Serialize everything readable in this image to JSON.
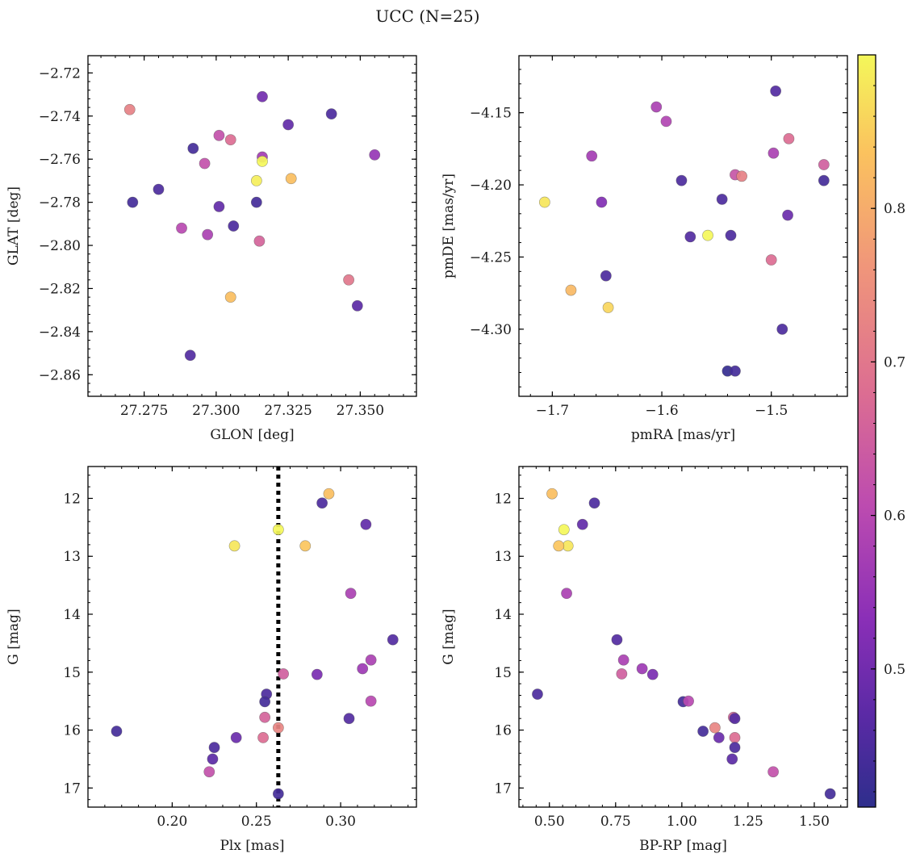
{
  "figure_title": "UCC (N=25)",
  "colorbar": {
    "colormap": "plasma",
    "range": [
      0.41,
      0.9
    ],
    "ticks": [
      0.5,
      0.6,
      0.7,
      0.8
    ],
    "tick_labels": [
      "0.5",
      "0.6",
      "0.7",
      "0.8"
    ]
  },
  "chart_data": [
    {
      "type": "scatter",
      "id": "glon-glat",
      "xlabel": "GLON [deg]",
      "ylabel": "GLAT [deg]",
      "xlim": [
        27.2555,
        27.3695
      ],
      "ylim": [
        -2.87,
        -2.712
      ],
      "y_inverted": false,
      "xticks": [
        27.275,
        27.3,
        27.325,
        27.35
      ],
      "xtick_labels": [
        "27.275",
        "27.300",
        "27.325",
        "27.350"
      ],
      "yticks": [
        -2.72,
        -2.74,
        -2.76,
        -2.78,
        -2.8,
        -2.82,
        -2.84,
        -2.86
      ],
      "ytick_labels": [
        "−2.72",
        "−2.74",
        "−2.76",
        "−2.78",
        "−2.80",
        "−2.82",
        "−2.84",
        "−2.86"
      ],
      "points": [
        {
          "x": 27.27,
          "y": -2.737,
          "c": 0.72
        },
        {
          "x": 27.316,
          "y": -2.731,
          "c": 0.5
        },
        {
          "x": 27.34,
          "y": -2.739,
          "c": 0.45
        },
        {
          "x": 27.325,
          "y": -2.744,
          "c": 0.48
        },
        {
          "x": 27.301,
          "y": -2.749,
          "c": 0.62
        },
        {
          "x": 27.305,
          "y": -2.751,
          "c": 0.68
        },
        {
          "x": 27.292,
          "y": -2.755,
          "c": 0.44
        },
        {
          "x": 27.316,
          "y": -2.759,
          "c": 0.57
        },
        {
          "x": 27.355,
          "y": -2.758,
          "c": 0.55
        },
        {
          "x": 27.316,
          "y": -2.761,
          "c": 0.9
        },
        {
          "x": 27.296,
          "y": -2.762,
          "c": 0.62
        },
        {
          "x": 27.326,
          "y": -2.769,
          "c": 0.83
        },
        {
          "x": 27.314,
          "y": -2.77,
          "c": 0.89
        },
        {
          "x": 27.28,
          "y": -2.774,
          "c": 0.45
        },
        {
          "x": 27.271,
          "y": -2.78,
          "c": 0.44
        },
        {
          "x": 27.314,
          "y": -2.78,
          "c": 0.44
        },
        {
          "x": 27.301,
          "y": -2.782,
          "c": 0.48
        },
        {
          "x": 27.306,
          "y": -2.791,
          "c": 0.45
        },
        {
          "x": 27.288,
          "y": -2.792,
          "c": 0.6
        },
        {
          "x": 27.297,
          "y": -2.795,
          "c": 0.58
        },
        {
          "x": 27.315,
          "y": -2.798,
          "c": 0.66
        },
        {
          "x": 27.305,
          "y": -2.824,
          "c": 0.83
        },
        {
          "x": 27.346,
          "y": -2.816,
          "c": 0.7
        },
        {
          "x": 27.349,
          "y": -2.828,
          "c": 0.47
        },
        {
          "x": 27.291,
          "y": -2.851,
          "c": 0.46
        }
      ]
    },
    {
      "type": "scatter",
      "id": "pmra-pmde",
      "xlabel": "pmRA [mas/yr]",
      "ylabel": "pmDE [mas/yr]",
      "xlim": [
        -1.7305,
        -1.4305
      ],
      "ylim": [
        -4.3465,
        -4.1105
      ],
      "y_inverted": false,
      "xticks": [
        -1.7,
        -1.6,
        -1.5
      ],
      "xtick_labels": [
        "−1.7",
        "−1.6",
        "−1.5"
      ],
      "yticks": [
        -4.15,
        -4.2,
        -4.25,
        -4.3
      ],
      "ytick_labels": [
        "−4.15",
        "−4.20",
        "−4.25",
        "−4.30"
      ],
      "points": [
        {
          "x": -1.496,
          "y": -4.135,
          "c": 0.46
        },
        {
          "x": -1.605,
          "y": -4.146,
          "c": 0.58
        },
        {
          "x": -1.596,
          "y": -4.156,
          "c": 0.59
        },
        {
          "x": -1.484,
          "y": -4.168,
          "c": 0.68
        },
        {
          "x": -1.498,
          "y": -4.178,
          "c": 0.58
        },
        {
          "x": -1.664,
          "y": -4.18,
          "c": 0.57
        },
        {
          "x": -1.452,
          "y": -4.186,
          "c": 0.65
        },
        {
          "x": -1.533,
          "y": -4.193,
          "c": 0.63
        },
        {
          "x": -1.527,
          "y": -4.194,
          "c": 0.72
        },
        {
          "x": -1.582,
          "y": -4.197,
          "c": 0.45
        },
        {
          "x": -1.452,
          "y": -4.197,
          "c": 0.44
        },
        {
          "x": -1.707,
          "y": -4.212,
          "c": 0.88
        },
        {
          "x": -1.655,
          "y": -4.212,
          "c": 0.52
        },
        {
          "x": -1.545,
          "y": -4.21,
          "c": 0.45
        },
        {
          "x": -1.485,
          "y": -4.221,
          "c": 0.49
        },
        {
          "x": -1.574,
          "y": -4.236,
          "c": 0.46
        },
        {
          "x": -1.537,
          "y": -4.235,
          "c": 0.45
        },
        {
          "x": -1.558,
          "y": -4.235,
          "c": 0.9
        },
        {
          "x": -1.5,
          "y": -4.252,
          "c": 0.68
        },
        {
          "x": -1.651,
          "y": -4.263,
          "c": 0.45
        },
        {
          "x": -1.683,
          "y": -4.273,
          "c": 0.82
        },
        {
          "x": -1.649,
          "y": -4.285,
          "c": 0.86
        },
        {
          "x": -1.49,
          "y": -4.3,
          "c": 0.45
        },
        {
          "x": -1.54,
          "y": -4.329,
          "c": 0.42
        },
        {
          "x": -1.533,
          "y": -4.329,
          "c": 0.44
        }
      ]
    },
    {
      "type": "scatter",
      "id": "plx-g",
      "xlabel": "Plx [mas]",
      "ylabel": "G [mag]",
      "xlim": [
        0.15,
        0.345
      ],
      "ylim": [
        17.33,
        11.45
      ],
      "y_inverted": true,
      "vline": {
        "x": 0.263,
        "style": "dotted"
      },
      "xticks": [
        0.2,
        0.25,
        0.3
      ],
      "xtick_labels": [
        "0.20",
        "0.25",
        "0.30"
      ],
      "yticks": [
        12,
        13,
        14,
        15,
        16,
        17
      ],
      "ytick_labels": [
        "12",
        "13",
        "14",
        "15",
        "16",
        "17"
      ],
      "points": [
        {
          "x": 0.293,
          "y": 11.92,
          "c": 0.83
        },
        {
          "x": 0.289,
          "y": 12.08,
          "c": 0.45
        },
        {
          "x": 0.315,
          "y": 12.45,
          "c": 0.48
        },
        {
          "x": 0.263,
          "y": 12.54,
          "c": 0.9
        },
        {
          "x": 0.237,
          "y": 12.82,
          "c": 0.88
        },
        {
          "x": 0.279,
          "y": 12.82,
          "c": 0.84
        },
        {
          "x": 0.306,
          "y": 13.64,
          "c": 0.58
        },
        {
          "x": 0.331,
          "y": 14.44,
          "c": 0.46
        },
        {
          "x": 0.318,
          "y": 14.79,
          "c": 0.58
        },
        {
          "x": 0.313,
          "y": 14.94,
          "c": 0.56
        },
        {
          "x": 0.266,
          "y": 15.03,
          "c": 0.65
        },
        {
          "x": 0.286,
          "y": 15.04,
          "c": 0.51
        },
        {
          "x": 0.256,
          "y": 15.38,
          "c": 0.45
        },
        {
          "x": 0.255,
          "y": 15.51,
          "c": 0.44
        },
        {
          "x": 0.318,
          "y": 15.5,
          "c": 0.6
        },
        {
          "x": 0.255,
          "y": 15.78,
          "c": 0.66
        },
        {
          "x": 0.305,
          "y": 15.8,
          "c": 0.46
        },
        {
          "x": 0.263,
          "y": 15.96,
          "c": 0.73
        },
        {
          "x": 0.167,
          "y": 16.02,
          "c": 0.44
        },
        {
          "x": 0.238,
          "y": 16.13,
          "c": 0.49
        },
        {
          "x": 0.254,
          "y": 16.13,
          "c": 0.68
        },
        {
          "x": 0.225,
          "y": 16.3,
          "c": 0.45
        },
        {
          "x": 0.224,
          "y": 16.5,
          "c": 0.47
        },
        {
          "x": 0.222,
          "y": 16.72,
          "c": 0.62
        },
        {
          "x": 0.263,
          "y": 17.1,
          "c": 0.44
        }
      ]
    },
    {
      "type": "scatter",
      "id": "bprp-g",
      "xlabel": "BP-RP [mag]",
      "ylabel": "G [mag]",
      "xlim": [
        0.385,
        1.625
      ],
      "ylim": [
        17.33,
        11.45
      ],
      "y_inverted": true,
      "xticks": [
        0.5,
        0.75,
        1.0,
        1.25,
        1.5
      ],
      "xtick_labels": [
        "0.50",
        "0.75",
        "1.00",
        "1.25",
        "1.50"
      ],
      "yticks": [
        12,
        13,
        14,
        15,
        16,
        17
      ],
      "ytick_labels": [
        "12",
        "13",
        "14",
        "15",
        "16",
        "17"
      ],
      "points": [
        {
          "x": 0.51,
          "y": 11.92,
          "c": 0.83
        },
        {
          "x": 0.67,
          "y": 12.08,
          "c": 0.45
        },
        {
          "x": 0.625,
          "y": 12.45,
          "c": 0.48
        },
        {
          "x": 0.555,
          "y": 12.54,
          "c": 0.9
        },
        {
          "x": 0.57,
          "y": 12.82,
          "c": 0.88
        },
        {
          "x": 0.535,
          "y": 12.82,
          "c": 0.84
        },
        {
          "x": 0.565,
          "y": 13.64,
          "c": 0.58
        },
        {
          "x": 0.755,
          "y": 14.44,
          "c": 0.46
        },
        {
          "x": 0.78,
          "y": 14.79,
          "c": 0.58
        },
        {
          "x": 0.85,
          "y": 14.94,
          "c": 0.56
        },
        {
          "x": 0.773,
          "y": 15.03,
          "c": 0.65
        },
        {
          "x": 0.89,
          "y": 15.04,
          "c": 0.51
        },
        {
          "x": 0.455,
          "y": 15.38,
          "c": 0.45
        },
        {
          "x": 1.005,
          "y": 15.51,
          "c": 0.44
        },
        {
          "x": 1.025,
          "y": 15.5,
          "c": 0.6
        },
        {
          "x": 1.195,
          "y": 15.78,
          "c": 0.66
        },
        {
          "x": 1.2,
          "y": 15.8,
          "c": 0.46
        },
        {
          "x": 1.125,
          "y": 15.96,
          "c": 0.73
        },
        {
          "x": 1.08,
          "y": 16.02,
          "c": 0.44
        },
        {
          "x": 1.14,
          "y": 16.13,
          "c": 0.49
        },
        {
          "x": 1.2,
          "y": 16.13,
          "c": 0.68
        },
        {
          "x": 1.2,
          "y": 16.3,
          "c": 0.45
        },
        {
          "x": 1.19,
          "y": 16.5,
          "c": 0.47
        },
        {
          "x": 1.345,
          "y": 16.72,
          "c": 0.62
        },
        {
          "x": 1.56,
          "y": 17.1,
          "c": 0.44
        }
      ]
    }
  ]
}
